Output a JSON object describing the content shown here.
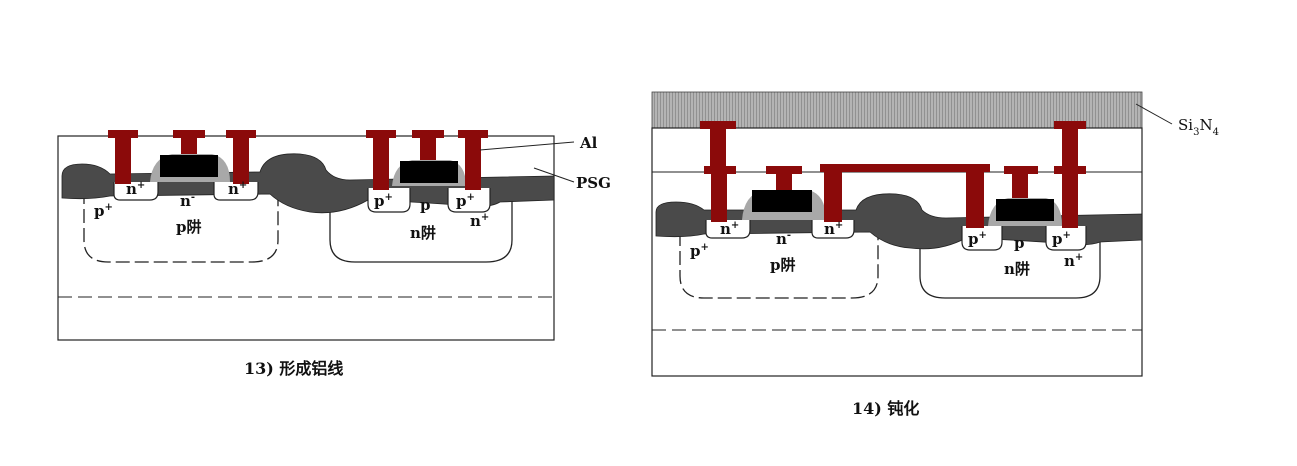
{
  "panel13": {
    "caption": "13) 形成铝线",
    "label_al": "Al",
    "label_psg": "PSG",
    "well_left": "p阱",
    "well_right": "n阱",
    "n_plus_a": "n",
    "n_plus_b": "n",
    "n_minus": "n",
    "p_plus_outer": "p",
    "p_plus_a": "p",
    "p_plus_b": "p",
    "p_mid": "p",
    "n_plus_outer": "n",
    "sup_plus": "+",
    "sup_minus": "-"
  },
  "panel14": {
    "caption": "14) 钝化",
    "label_si": "Si",
    "label_sub3": "3",
    "label_n": "N",
    "label_sub4": "4",
    "well_left": "p阱",
    "well_right": "n阱",
    "n_plus_a": "n",
    "n_plus_b": "n",
    "n_minus": "n",
    "p_plus_outer": "p",
    "p_plus_a": "p",
    "p_plus_b": "p",
    "p_mid": "p",
    "n_plus_outer": "n",
    "sup_plus": "+",
    "sup_minus": "-"
  },
  "colors": {
    "metal": "#8b0a0a",
    "oxide": "#4a4a4a",
    "gate": "#000000",
    "spacer": "#a8a8a8",
    "nitride": "#9a9a9a"
  }
}
